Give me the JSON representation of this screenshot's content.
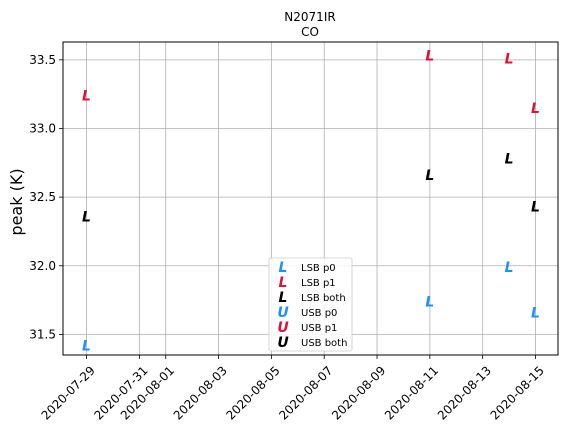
{
  "chart_data": {
    "type": "scatter",
    "title": "N2071IR",
    "subtitle": "CO",
    "xlabel": "",
    "ylabel": "peak (K)",
    "xlim": [
      "2020-07-28",
      "2020-08-15"
    ],
    "ylim": [
      31.35,
      33.63
    ],
    "x_ticks": [
      "2020-07-29",
      "2020-07-31",
      "2020-08-01",
      "2020-08-03",
      "2020-08-05",
      "2020-08-07",
      "2020-08-09",
      "2020-08-11",
      "2020-08-13",
      "2020-08-15"
    ],
    "y_ticks": [
      "31.5",
      "32.0",
      "32.5",
      "33.0",
      "33.5"
    ],
    "grid": true,
    "legend_position": "lower-center",
    "series": [
      {
        "name": "LSB p0",
        "marker": "L",
        "color": "#1e90ff",
        "points": [
          {
            "x": "2020-07-29",
            "y": 31.42
          },
          {
            "x": "2020-08-11",
            "y": 31.74
          },
          {
            "x": "2020-08-14",
            "y": 31.99
          },
          {
            "x": "2020-08-15",
            "y": 31.66
          }
        ]
      },
      {
        "name": "LSB p1",
        "marker": "L",
        "color": "#dc143c",
        "points": [
          {
            "x": "2020-07-29",
            "y": 33.24
          },
          {
            "x": "2020-08-11",
            "y": 33.53
          },
          {
            "x": "2020-08-14",
            "y": 33.51
          },
          {
            "x": "2020-08-15",
            "y": 33.15
          }
        ]
      },
      {
        "name": "LSB both",
        "marker": "L",
        "color": "#000000",
        "points": [
          {
            "x": "2020-07-29",
            "y": 32.36
          },
          {
            "x": "2020-08-11",
            "y": 32.66
          },
          {
            "x": "2020-08-14",
            "y": 32.78
          },
          {
            "x": "2020-08-15",
            "y": 32.43
          }
        ]
      },
      {
        "name": "USB p0",
        "marker": "U",
        "color": "#1e90ff",
        "points": []
      },
      {
        "name": "USB p1",
        "marker": "U",
        "color": "#dc143c",
        "points": []
      },
      {
        "name": "USB both",
        "marker": "U",
        "color": "#000000",
        "points": []
      }
    ]
  }
}
